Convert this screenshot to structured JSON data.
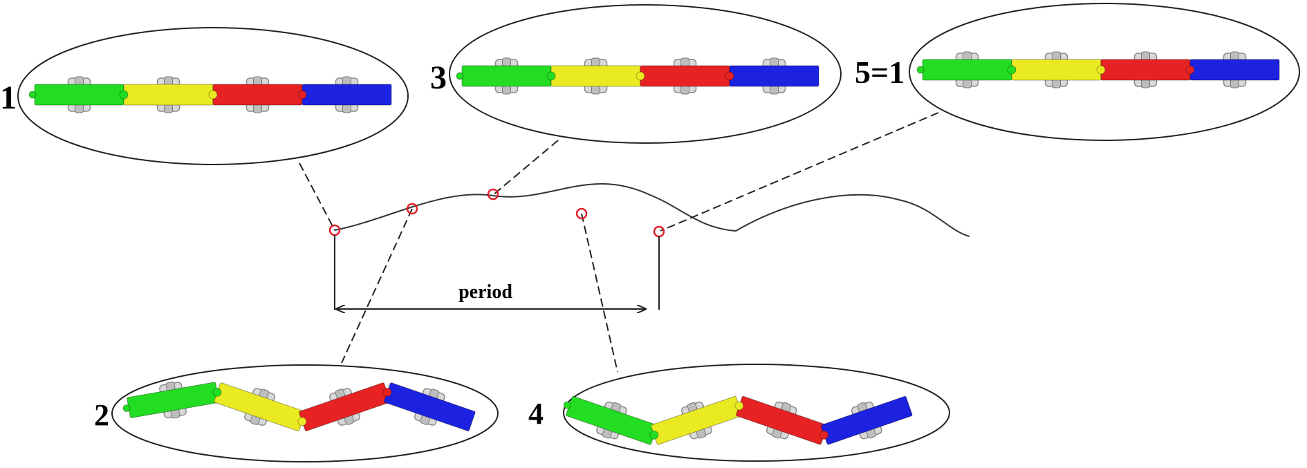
{
  "colors": {
    "segments": [
      "#22dd22",
      "#eaea22",
      "#e62222",
      "#1c22e0"
    ],
    "marker": "#e0202a"
  },
  "snapshots": [
    {
      "id": "1",
      "label": "1",
      "pose": "straight"
    },
    {
      "id": "2",
      "label": "2",
      "pose": "zigzag-down"
    },
    {
      "id": "3",
      "label": "3",
      "pose": "straight"
    },
    {
      "id": "4",
      "label": "4",
      "pose": "zigzag-up"
    },
    {
      "id": "5",
      "label": "5=1",
      "pose": "straight"
    }
  ],
  "period_label": "period"
}
